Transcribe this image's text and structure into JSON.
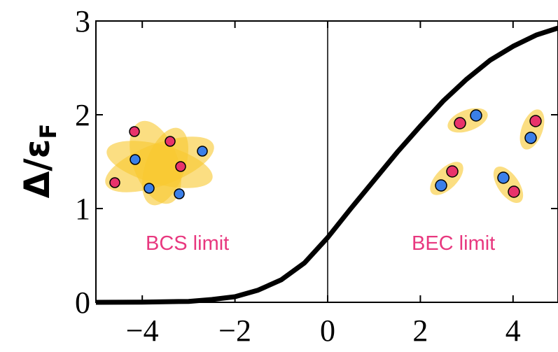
{
  "chart_data": {
    "type": "line",
    "ylabel": "Δ/ε",
    "ylabel_sub": "F",
    "x": [
      -5,
      -4,
      -3,
      -2.5,
      -2,
      -1.5,
      -1,
      -0.5,
      0,
      0.5,
      1,
      1.5,
      2,
      2.5,
      3,
      3.5,
      4,
      4.5,
      5
    ],
    "y": [
      0,
      0.002,
      0.01,
      0.03,
      0.06,
      0.13,
      0.24,
      0.42,
      0.69,
      1.0,
      1.3,
      1.6,
      1.88,
      2.15,
      2.38,
      2.58,
      2.73,
      2.85,
      2.93
    ],
    "color": "#000000",
    "xlim": [
      -5,
      5
    ],
    "ylim": [
      0,
      3
    ],
    "xticks": [
      {
        "value": -4,
        "label": "−4"
      },
      {
        "value": -2,
        "label": "−2"
      },
      0,
      2,
      4
    ],
    "yticks": [
      0,
      1,
      2,
      3
    ],
    "vline": 0,
    "annotations": [
      "BCS limit",
      "BEC limit"
    ]
  }
}
